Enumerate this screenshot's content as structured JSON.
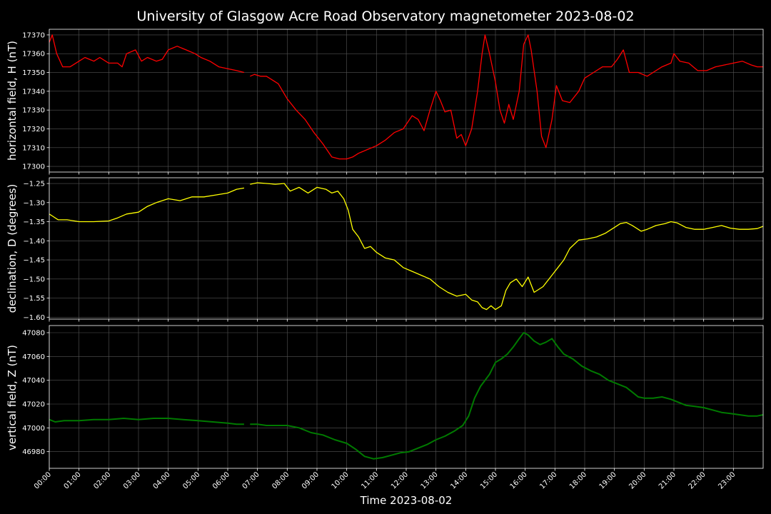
{
  "title": "University of Glasgow Acre Road Observatory magnetometer 2023-08-02",
  "xlabel": "Time 2023-08-02",
  "x_tick_labels": [
    "00:00",
    "01:00",
    "02:00",
    "03:00",
    "04:00",
    "05:00",
    "06:00",
    "07:00",
    "08:00",
    "09:00",
    "10:00",
    "11:00",
    "12:00",
    "13:00",
    "14:00",
    "15:00",
    "16:00",
    "17:00",
    "18:00",
    "19:00",
    "20:00",
    "21:00",
    "22:00",
    "23:00"
  ],
  "colors": {
    "background": "#000000",
    "grid": "#555555",
    "H": "#ff0000",
    "D": "#ffff00",
    "Z": "#007a00"
  },
  "chart_data": [
    {
      "type": "line",
      "ylabel": "horizontal field, H (nT)",
      "x_unit": "hours",
      "xlim": [
        0,
        24
      ],
      "ylim": [
        17297,
        17373
      ],
      "yticks": [
        17300,
        17310,
        17320,
        17330,
        17340,
        17350,
        17360,
        17370
      ],
      "grid": true,
      "gap_hours": [
        6.55,
        6.75
      ],
      "series": [
        {
          "color": "#ff0000",
          "x": [
            0,
            0.1,
            0.25,
            0.45,
            0.7,
            1.0,
            1.2,
            1.5,
            1.7,
            2.0,
            2.3,
            2.45,
            2.6,
            2.9,
            3.1,
            3.3,
            3.6,
            3.8,
            4.0,
            4.3,
            4.6,
            4.9,
            5.1,
            5.4,
            5.7,
            6.0,
            6.3,
            6.55,
            6.75,
            6.9,
            7.1,
            7.3,
            7.5,
            7.7,
            8.0,
            8.3,
            8.6,
            8.9,
            9.2,
            9.5,
            9.75,
            10.0,
            10.2,
            10.4,
            10.7,
            11.0,
            11.3,
            11.6,
            11.9,
            12.2,
            12.4,
            12.6,
            12.8,
            13.0,
            13.15,
            13.3,
            13.5,
            13.7,
            13.85,
            14.0,
            14.2,
            14.4,
            14.55,
            14.65,
            14.8,
            15.0,
            15.15,
            15.3,
            15.45,
            15.6,
            15.8,
            15.95,
            16.1,
            16.2,
            16.4,
            16.55,
            16.7,
            16.9,
            17.05,
            17.25,
            17.5,
            17.8,
            18.0,
            18.3,
            18.6,
            18.9,
            19.1,
            19.3,
            19.5,
            19.8,
            20.1,
            20.3,
            20.6,
            20.9,
            21.0,
            21.2,
            21.5,
            21.8,
            22.1,
            22.4,
            22.7,
            23.0,
            23.3,
            23.6,
            23.8,
            24.0
          ],
          "y": [
            17366,
            17370,
            17360,
            17353,
            17353,
            17356,
            17358,
            17356,
            17358,
            17355,
            17355,
            17353,
            17360,
            17362,
            17356,
            17358,
            17356,
            17357,
            17362,
            17364,
            17362,
            17360,
            17358,
            17356,
            17353,
            17352,
            17351,
            17350,
            17348,
            17349,
            17348,
            17348,
            17346,
            17344,
            17336,
            17330,
            17325,
            17318,
            17312,
            17305,
            17304,
            17304,
            17305,
            17307,
            17309,
            17311,
            17314,
            17318,
            17320,
            17327,
            17325,
            17319,
            17330,
            17340,
            17335,
            17329,
            17330,
            17315,
            17317,
            17311,
            17320,
            17340,
            17360,
            17370,
            17360,
            17345,
            17330,
            17323,
            17333,
            17325,
            17340,
            17365,
            17370,
            17362,
            17340,
            17316,
            17310,
            17325,
            17343,
            17335,
            17334,
            17340,
            17347,
            17350,
            17353,
            17353,
            17357,
            17362,
            17350,
            17350,
            17348,
            17350,
            17353,
            17355,
            17360,
            17356,
            17355,
            17351,
            17351,
            17353,
            17354,
            17355,
            17356,
            17354,
            17353,
            17353
          ]
        }
      ]
    },
    {
      "type": "line",
      "ylabel": "declination, D (degrees)",
      "x_unit": "hours",
      "xlim": [
        0,
        24
      ],
      "ylim": [
        -1.605,
        -1.235
      ],
      "yticks": [
        -1.25,
        -1.3,
        -1.35,
        -1.4,
        -1.45,
        -1.5,
        -1.55,
        -1.6
      ],
      "ytick_labels": [
        "−1.25",
        "−1.30",
        "−1.35",
        "−1.40",
        "−1.45",
        "−1.50",
        "−1.55",
        "−1.60"
      ],
      "grid": true,
      "gap_hours": [
        6.55,
        6.75
      ],
      "series": [
        {
          "color": "#ffff00",
          "x": [
            0,
            0.1,
            0.3,
            0.6,
            1.0,
            1.5,
            2.0,
            2.3,
            2.6,
            3.0,
            3.3,
            3.6,
            4.0,
            4.4,
            4.8,
            5.2,
            5.6,
            6.0,
            6.3,
            6.55,
            6.75,
            7.0,
            7.3,
            7.6,
            7.9,
            8.1,
            8.4,
            8.7,
            9.0,
            9.3,
            9.5,
            9.7,
            9.9,
            10.05,
            10.2,
            10.4,
            10.6,
            10.8,
            11.0,
            11.3,
            11.6,
            11.9,
            12.2,
            12.5,
            12.8,
            13.1,
            13.4,
            13.7,
            14.0,
            14.2,
            14.4,
            14.55,
            14.7,
            14.85,
            15.0,
            15.2,
            15.35,
            15.5,
            15.7,
            15.9,
            16.1,
            16.3,
            16.6,
            16.9,
            17.1,
            17.3,
            17.5,
            17.8,
            18.1,
            18.4,
            18.7,
            19.0,
            19.2,
            19.4,
            19.6,
            19.9,
            20.1,
            20.4,
            20.7,
            20.9,
            21.1,
            21.4,
            21.7,
            22.0,
            22.3,
            22.6,
            22.9,
            23.2,
            23.5,
            23.8,
            24.0
          ],
          "y": [
            -1.33,
            -1.335,
            -1.345,
            -1.345,
            -1.35,
            -1.35,
            -1.348,
            -1.34,
            -1.33,
            -1.325,
            -1.31,
            -1.3,
            -1.29,
            -1.295,
            -1.285,
            -1.285,
            -1.28,
            -1.275,
            -1.265,
            -1.262,
            -1.252,
            -1.248,
            -1.25,
            -1.252,
            -1.25,
            -1.27,
            -1.26,
            -1.275,
            -1.26,
            -1.265,
            -1.275,
            -1.27,
            -1.29,
            -1.32,
            -1.37,
            -1.39,
            -1.42,
            -1.415,
            -1.43,
            -1.445,
            -1.45,
            -1.47,
            -1.48,
            -1.49,
            -1.5,
            -1.52,
            -1.535,
            -1.545,
            -1.54,
            -1.555,
            -1.56,
            -1.575,
            -1.58,
            -1.57,
            -1.58,
            -1.57,
            -1.53,
            -1.51,
            -1.5,
            -1.52,
            -1.495,
            -1.535,
            -1.52,
            -1.49,
            -1.47,
            -1.45,
            -1.42,
            -1.398,
            -1.395,
            -1.39,
            -1.38,
            -1.365,
            -1.355,
            -1.352,
            -1.36,
            -1.375,
            -1.37,
            -1.36,
            -1.355,
            -1.35,
            -1.353,
            -1.365,
            -1.37,
            -1.37,
            -1.365,
            -1.36,
            -1.367,
            -1.37,
            -1.37,
            -1.368,
            -1.362
          ]
        }
      ]
    },
    {
      "type": "line",
      "ylabel": "vertical field, Z (nT)",
      "xlabel": "Time 2023-08-02",
      "x_unit": "hours",
      "xlim": [
        0,
        24
      ],
      "ylim": [
        46966,
        47086
      ],
      "yticks": [
        46980,
        47000,
        47020,
        47040,
        47060,
        47080
      ],
      "grid": true,
      "gap_hours": [
        6.55,
        6.75
      ],
      "series": [
        {
          "color": "#007a00",
          "x": [
            0,
            0.2,
            0.5,
            1.0,
            1.5,
            2.0,
            2.5,
            3.0,
            3.5,
            4.0,
            4.5,
            5.0,
            5.5,
            6.0,
            6.3,
            6.55,
            6.75,
            7.0,
            7.3,
            7.6,
            8.0,
            8.4,
            8.8,
            9.2,
            9.6,
            10.0,
            10.3,
            10.6,
            10.9,
            11.2,
            11.5,
            11.8,
            12.1,
            12.4,
            12.7,
            13.0,
            13.3,
            13.6,
            13.9,
            14.1,
            14.3,
            14.5,
            14.8,
            15.0,
            15.2,
            15.4,
            15.6,
            15.8,
            15.95,
            16.1,
            16.3,
            16.5,
            16.7,
            16.9,
            17.1,
            17.3,
            17.6,
            17.9,
            18.2,
            18.5,
            18.8,
            19.1,
            19.4,
            19.6,
            19.8,
            20.0,
            20.3,
            20.6,
            20.9,
            21.1,
            21.4,
            21.7,
            22.0,
            22.3,
            22.6,
            22.9,
            23.2,
            23.5,
            23.8,
            24.0
          ],
          "y": [
            47007,
            47005,
            47006,
            47006,
            47007,
            47007,
            47008,
            47007,
            47008,
            47008,
            47007,
            47006,
            47005,
            47004,
            47003,
            47003,
            47003,
            47003,
            47002,
            47002,
            47002,
            47000,
            46996,
            46994,
            46990,
            46987,
            46982,
            46976,
            46974,
            46975,
            46977,
            46979,
            46980,
            46983,
            46986,
            46990,
            46993,
            46997,
            47002,
            47010,
            47025,
            47035,
            47045,
            47055,
            47058,
            47062,
            47068,
            47075,
            47080,
            47078,
            47073,
            47070,
            47072,
            47075,
            47068,
            47062,
            47058,
            47052,
            47048,
            47045,
            47040,
            47037,
            47034,
            47030,
            47026,
            47025,
            47025,
            47026,
            47024,
            47022,
            47019,
            47018,
            47017,
            47015,
            47013,
            47012,
            47011,
            47010,
            47010,
            47011
          ]
        }
      ]
    }
  ]
}
